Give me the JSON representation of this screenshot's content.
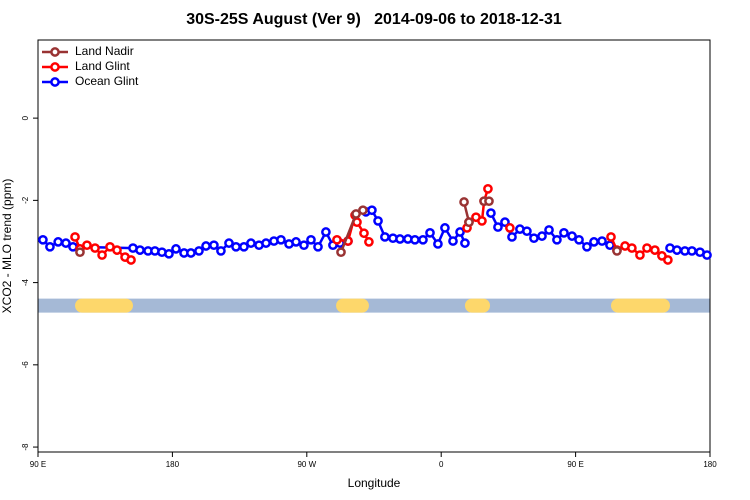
{
  "chart_data": {
    "type": "line",
    "title": "30S-25S August (Ver 9)   2014-09-06 to 2018-12-31",
    "xlabel": "Longitude",
    "ylabel": "XCO2 - MLO trend (ppm)",
    "xlim": [
      90,
      540
    ],
    "ylim": [
      -8.12,
      1.9
    ],
    "xticks": [
      {
        "value": 90,
        "label": "90 E"
      },
      180,
      {
        "value": 270,
        "label": "90 W"
      },
      {
        "value": 360,
        "label": "0"
      },
      {
        "value": 450,
        "label": "90 E"
      },
      {
        "value": 540,
        "label": "180"
      }
    ],
    "yticks": [
      0,
      -2,
      -4,
      -6,
      -8
    ],
    "legend": "upper left",
    "surface_band": {
      "y": -4.56,
      "ocean_color": "#a5b9d6",
      "land_color": "#fdd76b",
      "land": [
        [
          114.8,
          153.6
        ],
        [
          289.6,
          311.6
        ],
        [
          375.9,
          392.7
        ],
        [
          473.7,
          513.2
        ]
      ]
    },
    "series": [
      {
        "name": "Land Nadir",
        "color": "#993333",
        "x": [
          118.1,
          null,
          292.9,
          303.0,
          307.6,
          null,
          375.3,
          378.6,
          null,
          388.7,
          392.0,
          null,
          477.7
        ],
        "values": [
          -3.26,
          null,
          -3.26,
          -2.33,
          -2.24,
          null,
          -2.04,
          -2.53,
          null,
          -2.02,
          -2.02,
          null,
          -3.23
        ]
      },
      {
        "name": "Land Glint",
        "color": "#ff0000",
        "x": [
          114.8,
          118.1,
          122.8,
          128.2,
          132.9,
          138.2,
          142.9,
          148.3,
          152.3,
          null,
          290.2,
          297.6,
          302.3,
          303.6,
          308.3,
          311.6,
          null,
          377.3,
          378.6,
          383.3,
          387.3,
          388.7,
          391.3,
          null,
          406.0,
          null,
          473.7,
          477.7,
          483.1,
          487.7,
          493.1,
          497.8,
          503.1,
          507.8,
          511.8
        ],
        "values": [
          -2.89,
          -3.18,
          -3.09,
          -3.16,
          -3.33,
          -3.13,
          -3.21,
          -3.38,
          -3.45,
          null,
          -2.96,
          -2.99,
          -2.36,
          -2.53,
          -2.8,
          -3.01,
          null,
          -2.67,
          -2.53,
          -2.41,
          -2.5,
          -2.02,
          -1.72,
          null,
          -2.67,
          null,
          -2.89,
          -3.21,
          -3.11,
          -3.16,
          -3.33,
          -3.16,
          -3.21,
          -3.35,
          -3.45
        ]
      },
      {
        "name": "Ocean Glint",
        "color": "#0000ff",
        "x": [
          93.3,
          98.0,
          103.5,
          108.7,
          113.4,
          153.6,
          158.3,
          163.7,
          168.3,
          173.0,
          177.7,
          182.4,
          187.8,
          192.4,
          197.8,
          202.5,
          207.8,
          212.5,
          217.9,
          222.6,
          227.9,
          232.6,
          238.0,
          242.7,
          248.0,
          252.7,
          258.1,
          262.8,
          268.1,
          272.8,
          277.5,
          282.8,
          287.5,
          292.2,
          297.6,
          null,
          309.6,
          313.6,
          317.7,
          322.3,
          327.7,
          332.4,
          337.7,
          342.4,
          347.8,
          352.5,
          357.8,
          362.5,
          367.9,
          372.6,
          375.9,
          null,
          393.3,
          398.0,
          402.7,
          407.4,
          412.7,
          417.4,
          422.1,
          427.5,
          432.2,
          437.5,
          442.2,
          447.6,
          452.3,
          457.6,
          462.3,
          467.7,
          473.0,
          null,
          513.2,
          517.9,
          523.2,
          527.9,
          533.3,
          538.0
        ],
        "values": [
          -2.96,
          -3.13,
          -3.01,
          -3.04,
          -3.13,
          -3.16,
          -3.21,
          -3.23,
          -3.23,
          -3.26,
          -3.3,
          -3.18,
          -3.28,
          -3.28,
          -3.23,
          -3.11,
          -3.09,
          -3.23,
          -3.04,
          -3.13,
          -3.13,
          -3.04,
          -3.09,
          -3.04,
          -2.99,
          -2.96,
          -3.06,
          -3.01,
          -3.09,
          -2.96,
          -3.13,
          -2.77,
          -3.09,
          -3.04,
          -2.99,
          null,
          -2.28,
          -2.24,
          -2.5,
          -2.89,
          -2.92,
          -2.94,
          -2.94,
          -2.96,
          -2.96,
          -2.79,
          -3.06,
          -2.67,
          -2.99,
          -2.77,
          -3.04,
          null,
          -2.31,
          -2.65,
          -2.53,
          -2.89,
          -2.7,
          -2.75,
          -2.92,
          -2.87,
          -2.72,
          -2.96,
          -2.79,
          -2.87,
          -2.96,
          -3.13,
          -3.01,
          -2.99,
          -3.09,
          null,
          -3.16,
          -3.21,
          -3.23,
          -3.23,
          -3.26,
          -3.33
        ]
      }
    ]
  }
}
